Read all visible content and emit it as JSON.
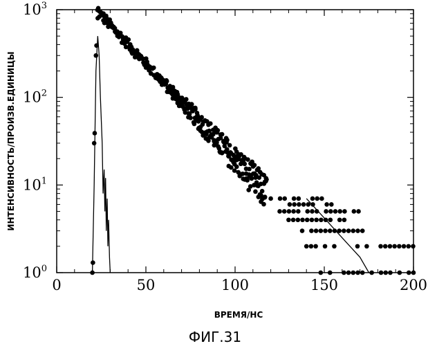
{
  "chart_data": {
    "type": "scatter",
    "title": "",
    "xlabel": "ВРЕМЯ/НС",
    "ylabel": "ИНТЕНСИВНОСТЬ/ПРОИЗВ.ЕДИНИЦЫ",
    "caption": "ФИГ.31",
    "xlim": [
      0,
      200
    ],
    "ylim": [
      1,
      1000
    ],
    "yscale": "log",
    "x_ticks": [
      {
        "value": 0,
        "label": "0"
      },
      {
        "value": 50,
        "label": "50"
      },
      {
        "value": 100,
        "label": "100"
      },
      {
        "value": 150,
        "label": "150"
      },
      {
        "value": 200,
        "label": "200"
      }
    ],
    "y_ticks": [
      {
        "value": 1,
        "base": "10",
        "exp": "0"
      },
      {
        "value": 10,
        "base": "10",
        "exp": "1"
      },
      {
        "value": 100,
        "base": "10",
        "exp": "2"
      },
      {
        "value": 1000,
        "base": "10",
        "exp": "3"
      }
    ],
    "grid": false,
    "legend": "none",
    "series": [
      {
        "kind": "points",
        "color": "#000000",
        "rise": [
          [
            20,
            1
          ],
          [
            21,
            30
          ],
          [
            22,
            300
          ],
          [
            23,
            800
          ]
        ],
        "decay": {
          "x_start": 23,
          "x_end": 200,
          "y0": 950,
          "tau_ns": 19.8,
          "step_ns": 0.75,
          "floor": 1
        },
        "sparse_levels": [
          {
            "y": 1,
            "x_from": 148,
            "x_to": 200
          },
          {
            "y": 2,
            "x_from": 140,
            "x_to": 200
          },
          {
            "y": 3,
            "x_from": 135,
            "x_to": 172
          },
          {
            "y": 4,
            "x_from": 130,
            "x_to": 165
          },
          {
            "y": 5,
            "x_from": 125,
            "x_to": 170
          },
          {
            "y": 6,
            "x_from": 128,
            "x_to": 155
          },
          {
            "y": 7,
            "x_from": 120,
            "x_to": 150
          }
        ]
      },
      {
        "kind": "line",
        "color": "#000000",
        "points": [
          [
            20,
            1
          ],
          [
            21,
            10
          ],
          [
            22,
            200
          ],
          [
            23,
            500
          ],
          [
            23.8,
            300
          ],
          [
            24.5,
            100
          ],
          [
            25.5,
            30
          ],
          [
            26,
            8
          ],
          [
            26.6,
            15
          ],
          [
            27,
            5
          ],
          [
            27.4,
            12
          ],
          [
            27.8,
            3
          ],
          [
            28.3,
            7
          ],
          [
            28.7,
            2
          ],
          [
            29.1,
            4
          ],
          [
            29.6,
            1.5
          ],
          [
            30,
            1
          ]
        ]
      },
      {
        "kind": "line",
        "color": "#000000",
        "points": [
          [
            140,
            7
          ],
          [
            150,
            4.2
          ],
          [
            160,
            2.5
          ],
          [
            170,
            1.5
          ],
          [
            175,
            1
          ]
        ]
      }
    ]
  }
}
